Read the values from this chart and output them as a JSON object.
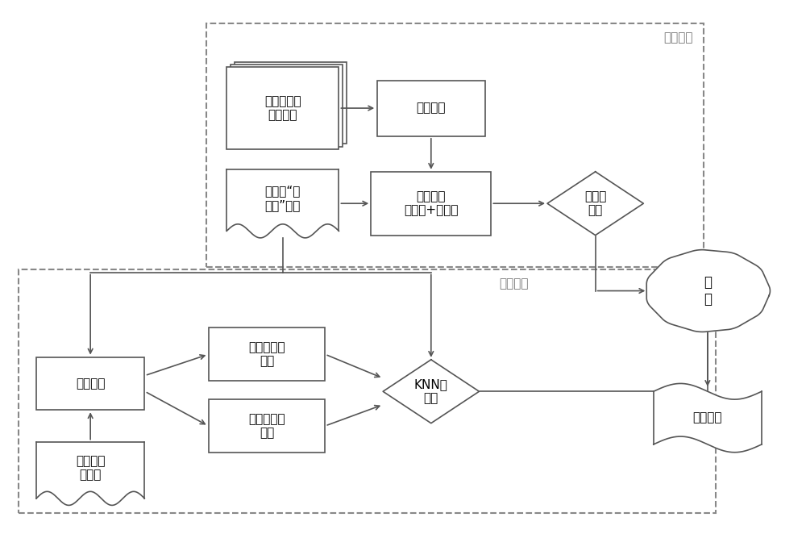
{
  "figsize": [
    10.0,
    6.62
  ],
  "dpi": 100,
  "bg_color": "#ffffff",
  "line_color": "#555555",
  "dash_color": "#888888",
  "font_size": 11,
  "offline_label": "离线学习",
  "online_label": "在线学习",
  "hist_data_label": "历史线路大\n数据样本",
  "offline_train_label": "离线训练",
  "new_data_label": "新线路“小\n数据”样本",
  "feat_extract_label": "提取特征\n（人工+机器）",
  "offline_cls_label": "离线分\n类器",
  "template_match_label": "模板匹配",
  "pos_update_label": "动态更新正\n样本",
  "neg_update_label": "动态更新负\n样本",
  "knn_cls_label": "KNN分\n类器",
  "template_lib_label": "正负样本\n模板库",
  "fusion_label": "融\n合",
  "fusion_rule_label": "融合规则"
}
